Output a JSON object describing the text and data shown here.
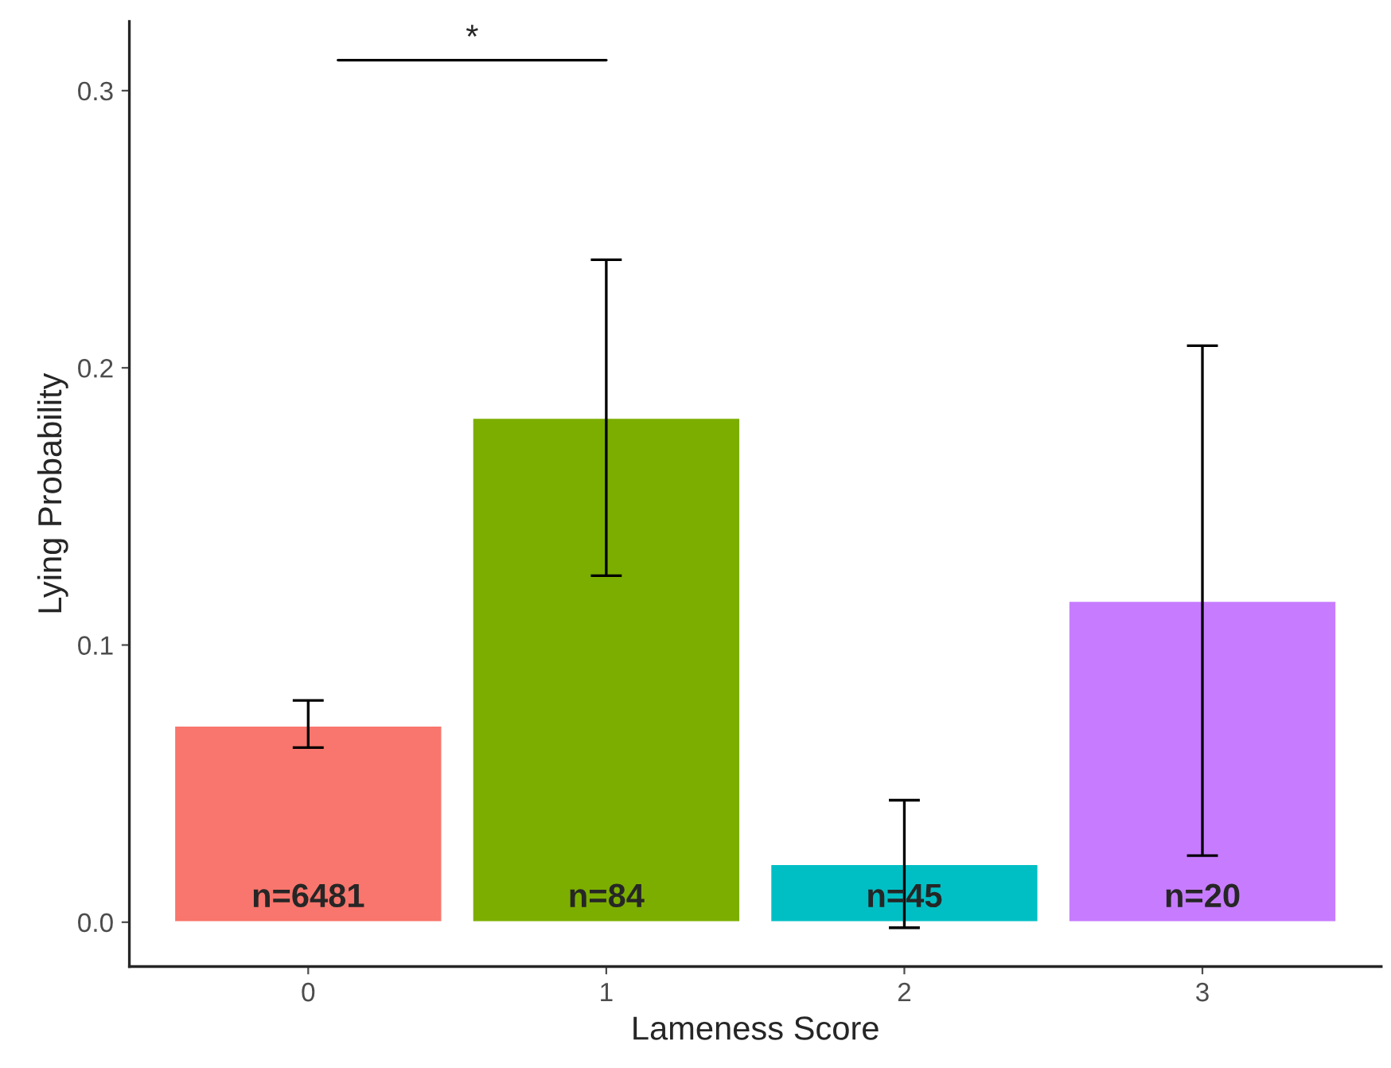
{
  "chart_data": {
    "type": "bar",
    "xlabel": "Lameness Score",
    "ylabel": "Lying Probability",
    "categories": [
      "0",
      "1",
      "2",
      "3"
    ],
    "values": [
      0.071,
      0.182,
      0.021,
      0.116
    ],
    "colors": [
      "#f8766d",
      "#7cae00",
      "#00bfc4",
      "#c77cff"
    ],
    "errors": [
      [
        0.063,
        0.08
      ],
      [
        0.125,
        0.239
      ],
      [
        -0.002,
        0.044
      ],
      [
        0.024,
        0.208
      ]
    ],
    "ylim": [
      -0.016,
      0.325
    ],
    "yticks": [
      {
        "value": 0,
        "label": "0.0"
      },
      0.1,
      0.2,
      0.3
    ],
    "grid": false,
    "legend": false,
    "annotations": [
      {
        "text": "n=6481",
        "x": "0",
        "y": 0
      },
      {
        "text": "n=84",
        "x": "1",
        "y": 0
      },
      {
        "text": "n=45",
        "x": "2",
        "y": 0
      },
      {
        "text": "n=20",
        "x": "3",
        "y": 0
      },
      "*"
    ]
  }
}
